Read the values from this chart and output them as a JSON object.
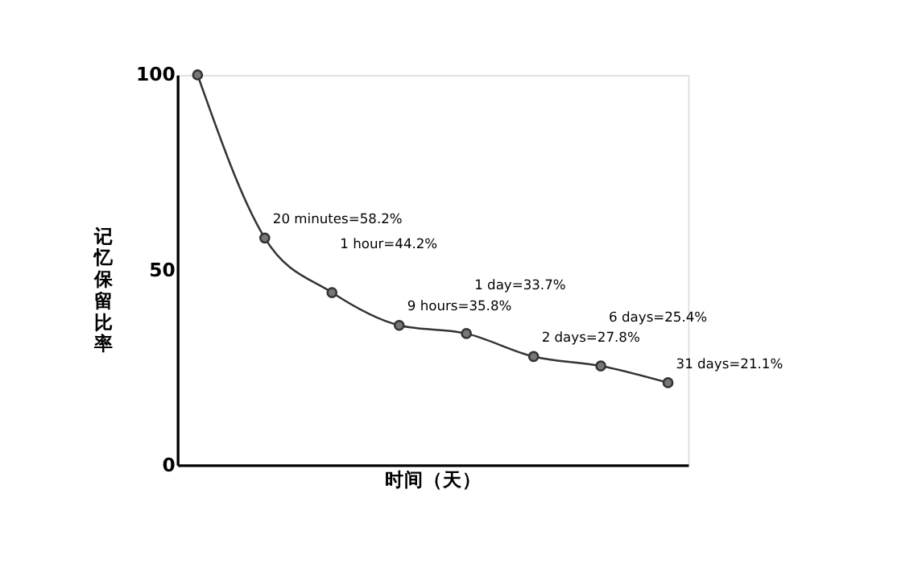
{
  "chart_data": {
    "type": "line",
    "xlabel": "时间（天）",
    "ylabel": "记忆保留比率",
    "categories": [
      null,
      null,
      null,
      null,
      null,
      null,
      null,
      null
    ],
    "series": [
      {
        "color": "#333333",
        "values": [
          100,
          58.2,
          44.2,
          35.8,
          33.7,
          27.8,
          25.4,
          21.1
        ]
      }
    ],
    "ylim": [
      0,
      100
    ],
    "yticks": [
      0,
      50,
      100
    ],
    "tick_labels": "y",
    "grid": false,
    "marker": "circle",
    "line_style": "solid",
    "annotations": [
      "20 minutes=58.2%",
      "1 hour=44.2%",
      "9 hours=35.8%",
      "1 day=33.7%",
      "2 days=27.8%",
      "6 days=25.4%",
      "31 days=21.1%"
    ]
  }
}
